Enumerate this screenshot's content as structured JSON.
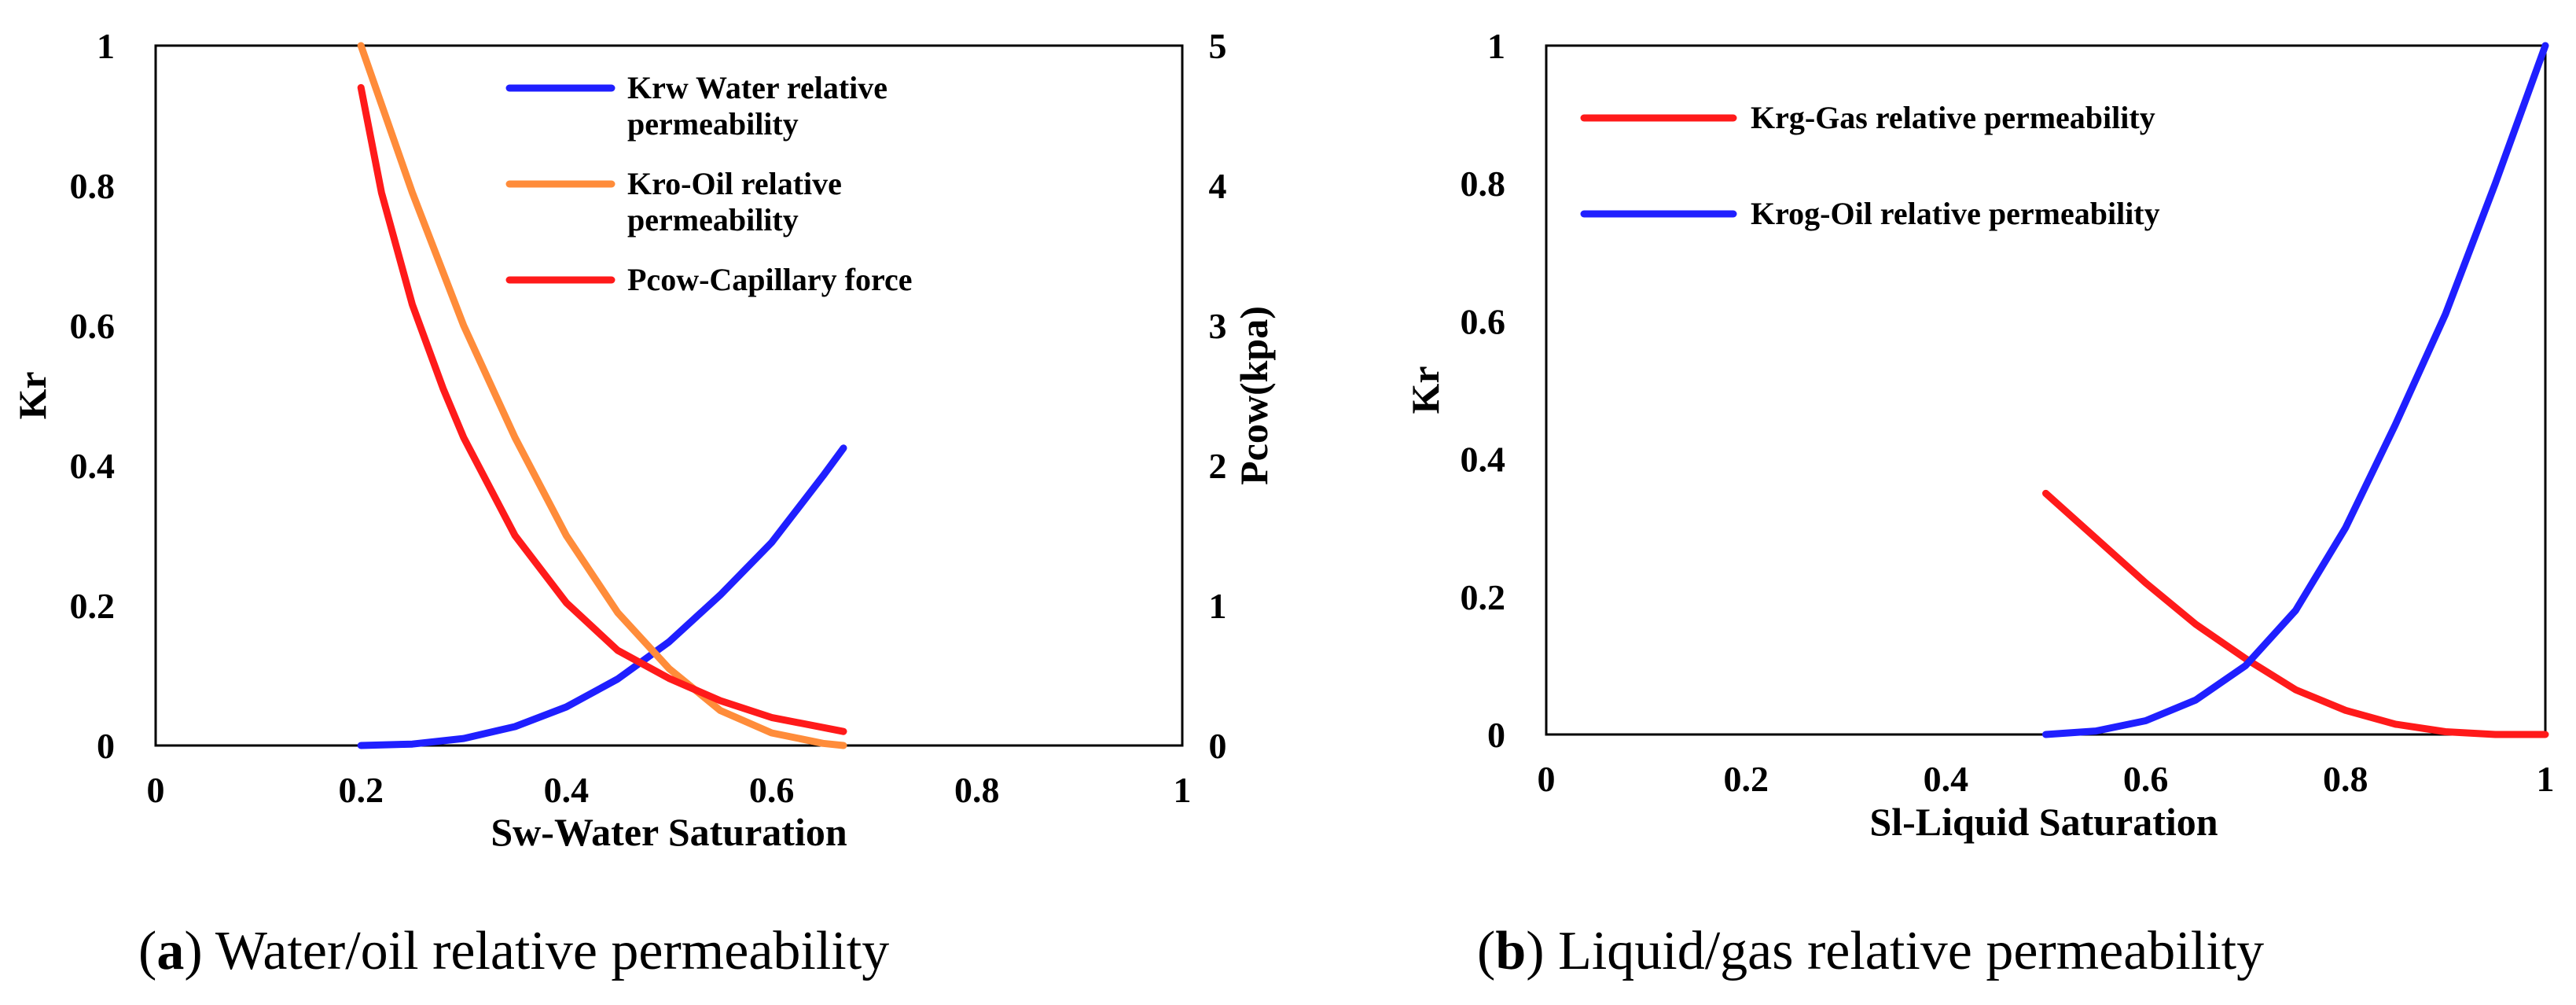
{
  "chart_data": [
    {
      "type": "line",
      "panel_letter": "a",
      "caption": "Water/oil relative permeability",
      "xlabel": "Sw-Water Saturation",
      "ylabel": "Kr",
      "y2label": "Pcow(kpa)",
      "xlim": [
        0,
        1
      ],
      "ylim": [
        0,
        1
      ],
      "y2lim": [
        0,
        5
      ],
      "xticks": [
        "0",
        "0.2",
        "0.4",
        "0.6",
        "0.8",
        "1"
      ],
      "yticks": [
        "0",
        "0.2",
        "0.4",
        "0.6",
        "0.8",
        "1"
      ],
      "y2ticks": [
        "0",
        "1",
        "2",
        "3",
        "4",
        "5"
      ],
      "legend_position": "top-right",
      "series": [
        {
          "name_line1": "Krw Water relative",
          "name_line2": "permeability",
          "color": "#1f1fff",
          "axis": "left",
          "x": [
            0.2,
            0.25,
            0.3,
            0.35,
            0.4,
            0.45,
            0.5,
            0.55,
            0.6,
            0.65,
            0.67
          ],
          "y": [
            0.0,
            0.002,
            0.01,
            0.027,
            0.055,
            0.095,
            0.148,
            0.215,
            0.29,
            0.385,
            0.425
          ]
        },
        {
          "name_line1": "Kro-Oil relative",
          "name_line2": "permeability",
          "color": "#ff8c3a",
          "axis": "left",
          "x": [
            0.2,
            0.25,
            0.3,
            0.35,
            0.4,
            0.45,
            0.5,
            0.55,
            0.6,
            0.65,
            0.67
          ],
          "y": [
            1.0,
            0.79,
            0.6,
            0.44,
            0.3,
            0.19,
            0.11,
            0.05,
            0.018,
            0.003,
            0.0
          ]
        },
        {
          "name_line1": "Pcow-Capillary force",
          "name_line2": "",
          "color": "#ff1a1a",
          "axis": "right",
          "x": [
            0.2,
            0.22,
            0.25,
            0.28,
            0.3,
            0.35,
            0.4,
            0.45,
            0.5,
            0.55,
            0.6,
            0.67
          ],
          "y": [
            4.7,
            3.95,
            3.15,
            2.55,
            2.2,
            1.5,
            1.02,
            0.68,
            0.48,
            0.32,
            0.2,
            0.1
          ]
        }
      ]
    },
    {
      "type": "line",
      "panel_letter": "b",
      "caption": "Liquid/gas relative permeability",
      "xlabel": "Sl-Liquid Saturation",
      "ylabel": "Kr",
      "xlim": [
        0,
        1
      ],
      "ylim": [
        0,
        1
      ],
      "xticks": [
        "0",
        "0.2",
        "0.4",
        "0.6",
        "0.8",
        "1"
      ],
      "yticks": [
        "0",
        "0.2",
        "0.4",
        "0.6",
        "0.8",
        "1"
      ],
      "legend_position": "top-left",
      "series": [
        {
          "name_line1": "Krg-Gas relative permeability",
          "name_line2": "",
          "color": "#ff1a1a",
          "x": [
            0.5,
            0.55,
            0.6,
            0.65,
            0.7,
            0.75,
            0.8,
            0.85,
            0.9,
            0.95,
            1.0
          ],
          "y": [
            0.35,
            0.285,
            0.22,
            0.16,
            0.11,
            0.065,
            0.035,
            0.015,
            0.004,
            0.0,
            0.0
          ]
        },
        {
          "name_line1": "Krog-Oil relative permeability",
          "name_line2": "",
          "color": "#1f1fff",
          "x": [
            0.5,
            0.55,
            0.6,
            0.65,
            0.7,
            0.75,
            0.8,
            0.85,
            0.9,
            0.95,
            1.0
          ],
          "y": [
            0.0,
            0.005,
            0.02,
            0.05,
            0.1,
            0.18,
            0.3,
            0.45,
            0.61,
            0.8,
            1.0
          ]
        }
      ]
    }
  ]
}
